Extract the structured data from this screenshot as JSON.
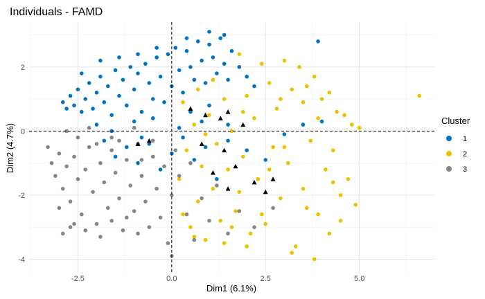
{
  "chart_data": {
    "type": "scatter",
    "title": "Individuals - FAMD",
    "xlabel": "Dim1 (6.1%)",
    "ylabel": "Dim2 (4.7%)",
    "xlim": [
      -3.8,
      7.0
    ],
    "ylim": [
      -4.4,
      3.4
    ],
    "x_ticks": [
      -2.5,
      0.0,
      2.5,
      5.0
    ],
    "x_tick_labels": [
      "-2.5",
      "0.0",
      "2.5",
      "5.0"
    ],
    "y_ticks": [
      -4,
      -2,
      0,
      2
    ],
    "y_tick_labels": [
      "-4",
      "-2",
      "0",
      "2"
    ],
    "grid": true,
    "reference_lines": [
      {
        "axis": "x",
        "value": 0,
        "style": "dashed"
      },
      {
        "axis": "y",
        "value": 0,
        "style": "dashed"
      }
    ],
    "legend": {
      "title": "Cluster",
      "position": "right"
    },
    "series": [
      {
        "name": "1",
        "color": "#0073C2",
        "marker": "circle",
        "points": [
          [
            -2.9,
            0.9
          ],
          [
            -2.8,
            0.7
          ],
          [
            -2.7,
            1.1
          ],
          [
            -2.6,
            0.8
          ],
          [
            -2.5,
            1.3
          ],
          [
            -2.4,
            0.6
          ],
          [
            -2.3,
            1.0
          ],
          [
            -2.2,
            1.5
          ],
          [
            -2.1,
            0.7
          ],
          [
            -2.0,
            1.2
          ],
          [
            -1.9,
            1.7
          ],
          [
            -1.8,
            0.9
          ],
          [
            -1.7,
            1.4
          ],
          [
            -1.6,
            0.5
          ],
          [
            -1.5,
            1.9
          ],
          [
            -1.4,
            1.1
          ],
          [
            -1.3,
            1.6
          ],
          [
            -1.2,
            0.8
          ],
          [
            -1.1,
            2.0
          ],
          [
            -1.0,
            1.3
          ],
          [
            -0.9,
            1.8
          ],
          [
            -0.8,
            0.6
          ],
          [
            -0.7,
            2.1
          ],
          [
            -0.6,
            1.5
          ],
          [
            -0.5,
            1.0
          ],
          [
            -0.4,
            2.3
          ],
          [
            -0.3,
            1.7
          ],
          [
            -0.2,
            0.9
          ],
          [
            -0.1,
            2.4
          ],
          [
            0.0,
            1.4
          ],
          [
            0.1,
            2.6
          ],
          [
            0.2,
            1.9
          ],
          [
            0.3,
            1.2
          ],
          [
            0.4,
            2.5
          ],
          [
            0.5,
            2.0
          ],
          [
            0.6,
            1.6
          ],
          [
            0.7,
            2.8
          ],
          [
            0.8,
            2.2
          ],
          [
            0.9,
            1.5
          ],
          [
            1.0,
            2.7
          ],
          [
            1.1,
            2.3
          ],
          [
            1.2,
            1.8
          ],
          [
            1.3,
            2.9
          ],
          [
            1.4,
            2.1
          ],
          [
            1.5,
            1.6
          ],
          [
            1.6,
            2.5
          ],
          [
            1.8,
            2.0
          ],
          [
            2.0,
            1.7
          ],
          [
            2.2,
            1.4
          ],
          [
            3.9,
            2.8
          ],
          [
            -1.8,
            -0.3
          ],
          [
            -1.5,
            -0.8
          ],
          [
            -1.2,
            -0.5
          ],
          [
            -0.9,
            -1.0
          ],
          [
            -0.6,
            -0.4
          ],
          [
            -0.3,
            -1.2
          ],
          [
            0.0,
            -0.7
          ],
          [
            0.3,
            -0.2
          ],
          [
            0.6,
            -0.9
          ],
          [
            0.9,
            -0.5
          ],
          [
            1.2,
            -1.5
          ],
          [
            1.5,
            -0.3
          ],
          [
            2.0,
            -0.6
          ],
          [
            2.5,
            -0.9
          ],
          [
            3.0,
            -0.1
          ],
          [
            3.5,
            0.2
          ],
          [
            4.0,
            0.3
          ],
          [
            -1.0,
            0.3
          ],
          [
            -0.5,
            0.4
          ],
          [
            0.5,
            0.6
          ],
          [
            1.0,
            0.8
          ],
          [
            1.5,
            0.2
          ],
          [
            -2.4,
            1.8
          ],
          [
            -1.9,
            2.2
          ],
          [
            -1.4,
            2.3
          ],
          [
            -0.9,
            2.4
          ],
          [
            -0.4,
            2.6
          ],
          [
            0.4,
            2.9
          ],
          [
            1.0,
            3.1
          ],
          [
            1.4,
            3.0
          ],
          [
            -2.0,
            0.2
          ],
          [
            -1.6,
            0.0
          ],
          [
            -0.8,
            -0.2
          ],
          [
            0.2,
            0.1
          ],
          [
            0.8,
            0.3
          ]
        ]
      },
      {
        "name": "2",
        "color": "#EFC000",
        "marker": "circle",
        "points": [
          [
            0.3,
            -2.6
          ],
          [
            0.5,
            -3.0
          ],
          [
            0.7,
            -2.2
          ],
          [
            0.9,
            -3.4
          ],
          [
            1.1,
            -1.8
          ],
          [
            1.3,
            -2.8
          ],
          [
            1.5,
            -1.2
          ],
          [
            1.7,
            -2.5
          ],
          [
            1.9,
            -0.8
          ],
          [
            2.1,
            -3.2
          ],
          [
            2.3,
            -1.5
          ],
          [
            2.5,
            -2.9
          ],
          [
            2.7,
            -0.5
          ],
          [
            2.9,
            -2.1
          ],
          [
            3.1,
            -1.0
          ],
          [
            3.3,
            -3.6
          ],
          [
            3.5,
            -1.8
          ],
          [
            3.7,
            -0.3
          ],
          [
            3.9,
            -2.6
          ],
          [
            4.1,
            -1.2
          ],
          [
            4.3,
            -0.6
          ],
          [
            4.5,
            -2.0
          ],
          [
            4.7,
            -1.5
          ],
          [
            4.9,
            -2.3
          ],
          [
            5.0,
            0.1
          ],
          [
            6.6,
            1.1
          ],
          [
            4.8,
            0.2
          ],
          [
            4.6,
            0.5
          ],
          [
            4.4,
            0.6
          ],
          [
            4.2,
            1.2
          ],
          [
            4.0,
            1.0
          ],
          [
            3.8,
            1.7
          ],
          [
            3.6,
            1.4
          ],
          [
            3.4,
            2.0
          ],
          [
            3.2,
            1.3
          ],
          [
            3.0,
            2.2
          ],
          [
            2.8,
            0.7
          ],
          [
            2.6,
            1.5
          ],
          [
            2.4,
            2.1
          ],
          [
            2.2,
            0.4
          ],
          [
            2.0,
            1.1
          ],
          [
            1.8,
            2.4
          ],
          [
            1.6,
            0.0
          ],
          [
            1.4,
            1.0
          ],
          [
            1.2,
            -0.4
          ],
          [
            1.0,
            0.5
          ],
          [
            0.8,
            -1.1
          ],
          [
            0.6,
            0.2
          ],
          [
            0.4,
            -0.6
          ],
          [
            0.2,
            -1.5
          ],
          [
            3.8,
            -4.0
          ],
          [
            3.2,
            -3.8
          ],
          [
            2.0,
            -3.6
          ],
          [
            1.4,
            -3.5
          ],
          [
            4.2,
            -3.2
          ],
          [
            4.5,
            -2.8
          ],
          [
            3.9,
            0.4
          ],
          [
            3.0,
            -0.5
          ],
          [
            2.6,
            -1.2
          ],
          [
            1.8,
            -1.9
          ],
          [
            0.9,
            -0.1
          ],
          [
            1.9,
            0.6
          ],
          [
            2.9,
            1.0
          ],
          [
            3.5,
            0.9
          ],
          [
            4.3,
            -1.6
          ],
          [
            3.6,
            -2.4
          ],
          [
            2.4,
            -2.6
          ],
          [
            1.6,
            -3.0
          ],
          [
            0.6,
            -3.3
          ],
          [
            0.3,
            0.9
          ],
          [
            0.7,
            1.3
          ],
          [
            1.1,
            1.6
          ]
        ]
      },
      {
        "name": "3",
        "color": "#868686",
        "marker": "circle",
        "points": [
          [
            -3.2,
            -1.0
          ],
          [
            -3.1,
            -1.4
          ],
          [
            -3.0,
            -0.7
          ],
          [
            -2.9,
            -1.8
          ],
          [
            -2.8,
            -1.1
          ],
          [
            -2.7,
            -2.2
          ],
          [
            -2.6,
            -0.8
          ],
          [
            -2.5,
            -1.5
          ],
          [
            -2.4,
            -2.6
          ],
          [
            -2.3,
            -1.2
          ],
          [
            -2.2,
            -0.5
          ],
          [
            -2.1,
            -1.9
          ],
          [
            -2.0,
            -2.9
          ],
          [
            -1.9,
            -1.0
          ],
          [
            -1.8,
            -1.6
          ],
          [
            -1.7,
            -2.4
          ],
          [
            -1.6,
            -0.6
          ],
          [
            -1.5,
            -1.3
          ],
          [
            -1.4,
            -2.1
          ],
          [
            -1.3,
            -3.1
          ],
          [
            -1.2,
            -0.9
          ],
          [
            -1.1,
            -1.7
          ],
          [
            -1.0,
            -2.5
          ],
          [
            -0.9,
            -0.4
          ],
          [
            -0.8,
            -1.4
          ],
          [
            -0.7,
            -2.2
          ],
          [
            -0.6,
            -3.0
          ],
          [
            -0.5,
            -0.8
          ],
          [
            -0.4,
            -1.8
          ],
          [
            -0.3,
            -2.7
          ],
          [
            -0.2,
            -1.1
          ],
          [
            -0.1,
            -3.5
          ],
          [
            0.0,
            -2.0
          ],
          [
            0.2,
            -1.4
          ],
          [
            0.4,
            -2.6
          ],
          [
            0.6,
            -3.4
          ],
          [
            0.8,
            -2.1
          ],
          [
            1.0,
            -2.8
          ],
          [
            1.2,
            -1.7
          ],
          [
            1.5,
            -3.2
          ],
          [
            1.8,
            -2.5
          ],
          [
            2.2,
            -3.0
          ],
          [
            2.7,
            -2.4
          ],
          [
            -2.9,
            -3.2
          ],
          [
            -2.6,
            -2.9
          ],
          [
            -2.3,
            -3.1
          ],
          [
            -1.9,
            -3.3
          ],
          [
            -1.6,
            -2.8
          ],
          [
            -3.3,
            -0.5
          ],
          [
            -2.8,
            0.0
          ],
          [
            -2.2,
            0.1
          ],
          [
            -1.6,
            -0.2
          ],
          [
            -1.0,
            0.1
          ],
          [
            -0.5,
            -0.3
          ],
          [
            0.0,
            -3.9
          ],
          [
            -2.5,
            -0.2
          ],
          [
            -2.0,
            -0.4
          ],
          [
            -1.4,
            -0.3
          ],
          [
            -0.8,
            -0.9
          ],
          [
            0.1,
            -0.6
          ],
          [
            0.5,
            -1.0
          ],
          [
            -3.0,
            -2.4
          ],
          [
            -2.7,
            -3.0
          ],
          [
            -1.2,
            -2.7
          ],
          [
            -0.9,
            -3.2
          ]
        ]
      }
    ],
    "centroids": {
      "marker": "triangle",
      "color": "#000000",
      "points": [
        [
          0.5,
          0.7
        ],
        [
          0.9,
          0.5
        ],
        [
          1.3,
          0.4
        ],
        [
          1.5,
          0.6
        ],
        [
          1.9,
          0.2
        ],
        [
          1.4,
          -0.6
        ],
        [
          1.1,
          -1.3
        ],
        [
          1.5,
          -1.8
        ],
        [
          2.2,
          -1.6
        ],
        [
          2.7,
          -1.5
        ],
        [
          2.5,
          -1.9
        ],
        [
          1.7,
          -1.1
        ],
        [
          0.8,
          -0.4
        ],
        [
          -0.6,
          -0.3
        ],
        [
          -0.9,
          -0.4
        ]
      ]
    }
  }
}
